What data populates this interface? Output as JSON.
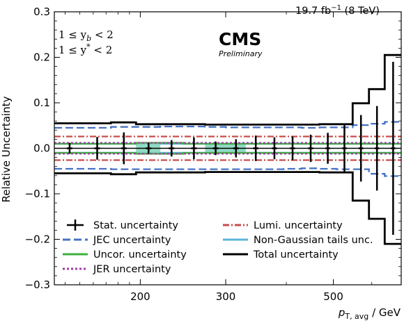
{
  "header": {
    "lumi_value": "19.7 fb",
    "lumi_exp": "−1",
    "energy": " (8 TeV)"
  },
  "experiment": {
    "name": "CMS",
    "status": "Preliminary"
  },
  "selection": {
    "line1": "1 ≤ y",
    "line1_sub": "b",
    "line1_tail": " < 2",
    "line2": "1 ≤ y",
    "line2_sup": "*",
    "line2_tail": " < 2"
  },
  "chart_data": {
    "type": "line",
    "title": "",
    "ylabel": "Relative Uncertainty",
    "xlabel_main": "p",
    "xlabel_sub": "T, avg",
    "xlabel_unit": " / GeV",
    "xscale": "log",
    "xlim": [
      133,
      690
    ],
    "ylim": [
      -0.3,
      0.3
    ],
    "yticks": [
      -0.3,
      -0.2,
      -0.1,
      0.0,
      0.1,
      0.2,
      0.3
    ],
    "ytick_labels": [
      "−0.3",
      "−0.2",
      "−0.1",
      "0.0",
      "0.1",
      "0.2",
      "0.3"
    ],
    "xticks": [
      200,
      300,
      500
    ],
    "xtick_labels": [
      "200",
      "300",
      "500"
    ],
    "bin_edges": [
      133,
      153,
      174,
      196,
      220,
      245,
      272,
      300,
      330,
      362,
      395,
      430,
      468,
      507,
      548,
      592,
      638,
      690
    ],
    "bin_centers": [
      143,
      163,
      185,
      208,
      232,
      258,
      286,
      315,
      346,
      378,
      412,
      449,
      487,
      527,
      570,
      615,
      664
    ],
    "legend_position": "lower-left",
    "legend": [
      {
        "label": "Stat. uncertainty",
        "color": "#000000",
        "style": "errorbar"
      },
      {
        "label": "JEC uncertainty",
        "color": "#4472c4",
        "style": "dashed"
      },
      {
        "label": "Uncor. uncertainty",
        "color": "#3daf3d",
        "style": "solid"
      },
      {
        "label": "JER uncertainty",
        "color": "#a43ca4",
        "style": "dotted"
      },
      {
        "label": "Lumi. uncertainty",
        "color": "#c84b4b",
        "style": "dashdot"
      },
      {
        "label": "Non-Gaussian tails unc.",
        "color": "#5bb5d5",
        "style": "solid"
      },
      {
        "label": "Total uncertainty",
        "color": "#000000",
        "style": "solid"
      }
    ],
    "series": [
      {
        "name": "Stat. uncertainty",
        "values": [
          0.012,
          0.025,
          0.035,
          0.012,
          0.018,
          0.024,
          0.015,
          0.02,
          0.028,
          0.024,
          0.026,
          0.03,
          0.034,
          0.055,
          0.073,
          0.093,
          0.19
        ]
      },
      {
        "name": "JEC uncertainty",
        "up": [
          0.045,
          0.045,
          0.047,
          0.047,
          0.048,
          0.048,
          0.047,
          0.046,
          0.046,
          0.046,
          0.046,
          0.045,
          0.046,
          0.046,
          0.051,
          0.054,
          0.058
        ],
        "down": [
          -0.045,
          -0.045,
          -0.046,
          -0.046,
          -0.046,
          -0.046,
          -0.046,
          -0.046,
          -0.046,
          -0.046,
          -0.045,
          -0.044,
          -0.045,
          -0.046,
          -0.046,
          -0.056,
          -0.061
        ]
      },
      {
        "name": "Uncor. uncertainty",
        "values": [
          0.01,
          0.01,
          0.01,
          0.012,
          0.012,
          0.01,
          0.01,
          0.01,
          0.01,
          0.01,
          0.01,
          0.01,
          0.01,
          0.01,
          0.01,
          0.01,
          0.01
        ]
      },
      {
        "name": "JER uncertainty",
        "values": [
          0.012,
          0.012,
          0.012,
          0.012,
          0.012,
          0.012,
          0.012,
          0.012,
          0.012,
          0.012,
          0.012,
          0.012,
          0.012,
          0.012,
          0.012,
          0.012,
          0.012
        ]
      },
      {
        "name": "Lumi. uncertainty",
        "values": [
          0.026,
          0.026,
          0.026,
          0.026,
          0.026,
          0.026,
          0.026,
          0.026,
          0.026,
          0.026,
          0.026,
          0.026,
          0.026,
          0.026,
          0.026,
          0.026,
          0.026
        ]
      },
      {
        "name": "Non-Gaussian tails unc.",
        "values": [
          0.01,
          0.01,
          0.01,
          0.01,
          0.01,
          0.01,
          0.01,
          0.01,
          0.01,
          0.01,
          0.01,
          0.01,
          0.01,
          0.01,
          0.01,
          0.01,
          0.01
        ]
      },
      {
        "name": "Total uncertainty",
        "up": [
          0.055,
          0.055,
          0.057,
          0.053,
          0.053,
          0.053,
          0.052,
          0.052,
          0.052,
          0.052,
          0.052,
          0.052,
          0.053,
          0.053,
          0.099,
          0.13,
          0.205
        ],
        "down": [
          -0.055,
          -0.055,
          -0.057,
          -0.053,
          -0.053,
          -0.053,
          -0.052,
          -0.052,
          -0.052,
          -0.052,
          -0.052,
          -0.052,
          -0.053,
          -0.053,
          -0.115,
          -0.155,
          -0.21
        ]
      }
    ]
  }
}
